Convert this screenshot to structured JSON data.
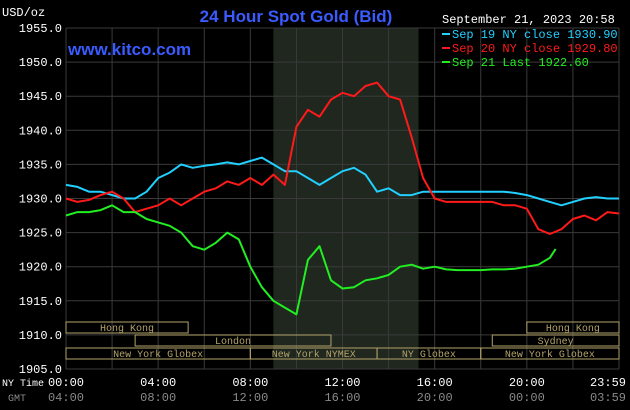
{
  "header": {
    "unit": "USD/oz",
    "title": "24 Hour Spot Gold (Bid)",
    "date": "September 21, 2023 20:58",
    "site": "www.kitco.com"
  },
  "colors": {
    "background": "#000000",
    "title": "#3a5bff",
    "site": "#3a5bff",
    "grid": "#3a3a3a",
    "overnight_shade": "#1f271f",
    "sessions": "#b3a36a",
    "sep19": "#22d0ff",
    "sep20": "#ff1a1a",
    "sep21": "#22ee22"
  },
  "legend": [
    {
      "label": "Sep 19 NY close 1930.90",
      "color": "#22d0ff"
    },
    {
      "label": "Sep 20 NY close 1929.80",
      "color": "#ff1a1a"
    },
    {
      "label": "Sep 21 Last 1922.60",
      "color": "#22ee22"
    }
  ],
  "sessions": [
    {
      "label": "Hong Kong",
      "row": 0,
      "start": 0,
      "end": 5.3
    },
    {
      "label": "Hong Kong",
      "row": 0,
      "start": 20.0,
      "end": 24.0
    },
    {
      "label": "London",
      "row": 1,
      "start": 3.0,
      "end": 11.5
    },
    {
      "label": "Sydney",
      "row": 1,
      "start": 18.5,
      "end": 24.0
    },
    {
      "label": "New York Globex",
      "row": 2,
      "start": 0,
      "end": 8.0
    },
    {
      "label": "New York NYMEX",
      "row": 2,
      "start": 8.0,
      "end": 13.5
    },
    {
      "label": "NY Globex",
      "row": 2,
      "start": 13.5,
      "end": 18.0
    },
    {
      "label": "New York Globex",
      "row": 2,
      "start": 18.0,
      "end": 24.0
    }
  ],
  "sessions_row0_left_stub": {
    "start": 0,
    "end": 0.1
  },
  "time_rows": {
    "ny_label": "NY Time",
    "gmt_label": "GMT",
    "ny": [
      "00:00",
      "04:00",
      "08:00",
      "12:00",
      "16:00",
      "20:00",
      "23:59"
    ],
    "gmt": [
      "04:00",
      "08:00",
      "12:00",
      "16:00",
      "20:00",
      "00:00",
      "03:59"
    ]
  },
  "chart_data": {
    "type": "line",
    "title": "24 Hour Spot Gold (Bid)",
    "ylabel": "USD/oz",
    "xlabel": "NY Time",
    "x_unit": "hours since 00:00 NY time",
    "xlim": [
      0,
      24
    ],
    "ylim": [
      1905,
      1955
    ],
    "y_ticks": [
      1905,
      1910,
      1915,
      1920,
      1925,
      1930,
      1935,
      1940,
      1945,
      1950,
      1955
    ],
    "shaded_range": [
      9,
      15.3
    ],
    "series": [
      {
        "name": "Sep 19 NY close 1930.90",
        "color": "#22d0ff",
        "x": [
          0,
          0.5,
          1,
          1.5,
          2,
          2.5,
          3,
          3.5,
          4,
          4.5,
          5,
          5.5,
          6,
          6.5,
          7,
          7.5,
          8,
          8.5,
          9,
          9.5,
          10,
          10.5,
          11,
          11.5,
          12,
          12.5,
          13,
          13.5,
          14,
          14.5,
          15,
          15.5,
          16,
          16.5,
          17,
          17.5,
          18,
          18.5,
          19,
          19.5,
          20,
          20.5,
          21,
          21.5,
          22,
          22.5,
          23,
          23.5,
          24
        ],
        "y": [
          1932,
          1931.7,
          1931,
          1931,
          1930.5,
          1930,
          1930,
          1931,
          1933,
          1933.8,
          1935,
          1934.5,
          1934.8,
          1935,
          1935.3,
          1935,
          1935.5,
          1936,
          1935,
          1934,
          1934,
          1933,
          1932,
          1933,
          1934,
          1934.5,
          1933.5,
          1931,
          1931.5,
          1930.5,
          1930.5,
          1931,
          1931,
          1931,
          1931,
          1931,
          1931,
          1931,
          1931,
          1930.8,
          1930.5,
          1930,
          1929.5,
          1929,
          1929.5,
          1930,
          1930.2,
          1930,
          1930
        ]
      },
      {
        "name": "Sep 20 NY close 1929.80",
        "color": "#ff1a1a",
        "x": [
          0,
          0.5,
          1,
          1.5,
          2,
          2.5,
          3,
          3.5,
          4,
          4.5,
          5,
          5.5,
          6,
          6.5,
          7,
          7.5,
          8,
          8.5,
          9,
          9.5,
          10,
          10.5,
          11,
          11.5,
          12,
          12.5,
          13,
          13.5,
          14,
          14.5,
          15,
          15.5,
          16,
          16.5,
          17,
          17.5,
          18,
          18.5,
          19,
          19.5,
          20,
          20.5,
          21,
          21.5,
          22,
          22.5,
          23,
          23.5,
          24
        ],
        "y": [
          1930,
          1929.5,
          1929.8,
          1930.5,
          1931,
          1930,
          1928,
          1928.5,
          1929,
          1930,
          1929,
          1930,
          1931,
          1931.5,
          1932.5,
          1932,
          1933,
          1932,
          1933.5,
          1932,
          1940.5,
          1943,
          1942,
          1944.5,
          1945.5,
          1945,
          1946.5,
          1947,
          1945,
          1944.5,
          1939,
          1933,
          1930,
          1929.5,
          1929.5,
          1929.5,
          1929.5,
          1929.5,
          1929,
          1929,
          1928.5,
          1925.5,
          1924.8,
          1925.5,
          1927,
          1927.5,
          1926.8,
          1928,
          1927.8
        ]
      },
      {
        "name": "Sep 21 Last 1922.60",
        "color": "#22ee22",
        "x": [
          0,
          0.5,
          1,
          1.5,
          2,
          2.5,
          3,
          3.5,
          4,
          4.5,
          5,
          5.5,
          6,
          6.5,
          7,
          7.5,
          8,
          8.5,
          9,
          9.5,
          10,
          10.5,
          11,
          11.5,
          12,
          12.5,
          13,
          13.5,
          14,
          14.5,
          15,
          15.5,
          16,
          16.5,
          17,
          17.5,
          18,
          18.5,
          19,
          19.5,
          20,
          20.5,
          21,
          21.25
        ],
        "y": [
          1927.5,
          1928,
          1928,
          1928.3,
          1929,
          1928,
          1928,
          1927,
          1926.5,
          1926,
          1925,
          1923,
          1922.5,
          1923.5,
          1925,
          1924,
          1920,
          1917,
          1915,
          1914,
          1913,
          1921,
          1923,
          1918,
          1916.8,
          1917,
          1918,
          1918.3,
          1918.8,
          1920,
          1920.3,
          1919.7,
          1920,
          1919.6,
          1919.5,
          1919.5,
          1919.5,
          1919.6,
          1919.6,
          1919.7,
          1920,
          1920.3,
          1921.3,
          1922.6
        ]
      }
    ]
  }
}
